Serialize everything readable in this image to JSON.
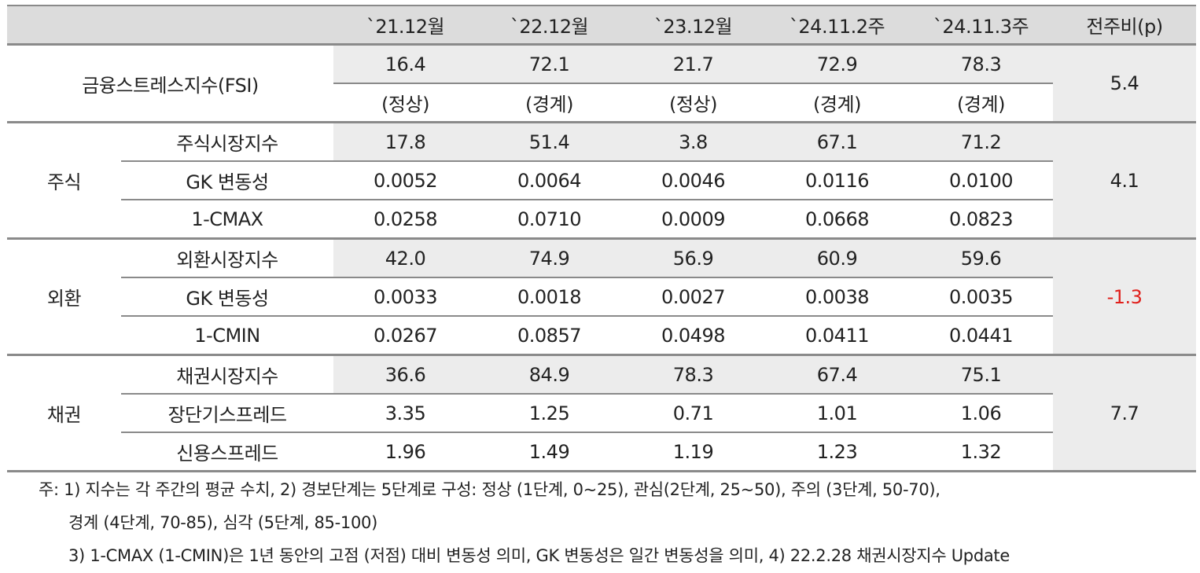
{
  "header": {
    "empty": "",
    "cols": [
      "`21.12월",
      "`22.12월",
      "`23.12월",
      "`24.11.2주",
      "`24.11.3주"
    ],
    "change": "전주비(p)"
  },
  "fsi": {
    "label": "금융스트레스지수(FSI)",
    "values": [
      "16.4",
      "72.1",
      "21.7",
      "72.9",
      "78.3"
    ],
    "states": [
      "(정상)",
      "(경계)",
      "(정상)",
      "(경계)",
      "(경계)"
    ],
    "change": "5.4"
  },
  "stock": {
    "group": "주식",
    "change": "4.1",
    "rows": [
      {
        "label": "주식시장지수",
        "values": [
          "17.8",
          "51.4",
          "3.8",
          "67.1",
          "71.2"
        ]
      },
      {
        "label": "GK 변동성",
        "values": [
          "0.0052",
          "0.0064",
          "0.0046",
          "0.0116",
          "0.0100"
        ]
      },
      {
        "label": "1-CMAX",
        "values": [
          "0.0258",
          "0.0710",
          "0.0009",
          "0.0668",
          "0.0823"
        ]
      }
    ]
  },
  "fx": {
    "group": "외환",
    "change": "-1.3",
    "rows": [
      {
        "label": "외환시장지수",
        "values": [
          "42.0",
          "74.9",
          "56.9",
          "60.9",
          "59.6"
        ]
      },
      {
        "label": "GK 변동성",
        "values": [
          "0.0033",
          "0.0018",
          "0.0027",
          "0.0038",
          "0.0035"
        ]
      },
      {
        "label": "1-CMIN",
        "values": [
          "0.0267",
          "0.0857",
          "0.0498",
          "0.0411",
          "0.0441"
        ]
      }
    ]
  },
  "bond": {
    "group": "채권",
    "change": "7.7",
    "rows": [
      {
        "label": "채권시장지수",
        "values": [
          "36.6",
          "84.9",
          "78.3",
          "67.4",
          "75.1"
        ]
      },
      {
        "label": "장단기스프레드",
        "values": [
          "3.35",
          "1.25",
          "0.71",
          "1.01",
          "1.06"
        ]
      },
      {
        "label": "신용스프레드",
        "values": [
          "1.96",
          "1.49",
          "1.19",
          "1.23",
          "1.32"
        ]
      }
    ]
  },
  "notes": {
    "line1": "주: 1) 지수는 각 주간의 평균 수치, 2) 경보단계는 5단계로 구성: 정상 (1단계, 0~25), 관심(2단계, 25~50), 주의 (3단계, 50-70),",
    "line2": "경계 (4단계, 70-85), 심각 (5단계, 85-100)",
    "line3": "3) 1-CMAX (1-CMIN)은 1년 동안의 고점 (저점) 대비 변동성 의미, GK 변동성은 일간 변동성을 의미, 4) 22.2.28 채권시장지수 Update"
  },
  "colors": {
    "header_bg": "#dcdcdc",
    "shade_bg": "#ececec",
    "rule": "#8a8a8a",
    "negative": "#e0201c"
  }
}
